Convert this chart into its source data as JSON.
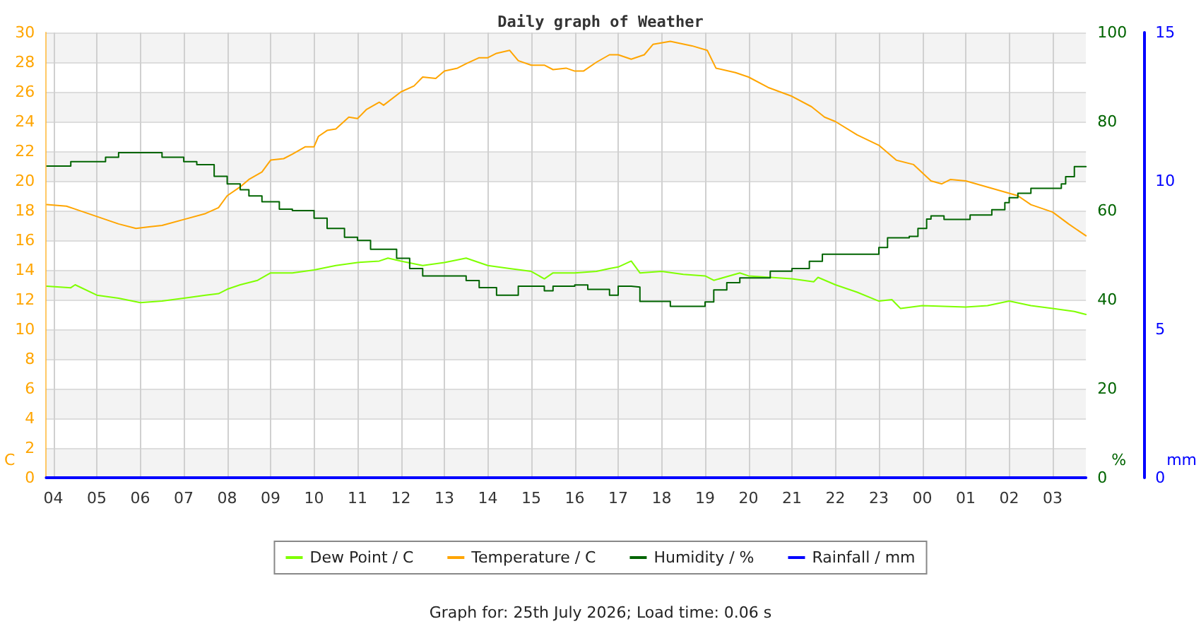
{
  "chart_data": {
    "type": "line",
    "title": "Daily graph of Weather",
    "ylabel": "C",
    "y2label": "%",
    "y3label": "mm",
    "annotations": [
      "Graph for: 25th July 2026; Load time: 0.06 s"
    ],
    "xlim": [
      "2026-07-24T03:50",
      "2026-07-25T03:46"
    ],
    "xticks": [
      {
        "value": "2026-07-24T04:00",
        "label": "04"
      },
      {
        "value": "2026-07-24T05:00",
        "label": "05"
      },
      {
        "value": "2026-07-24T06:00",
        "label": "06"
      },
      {
        "value": "2026-07-24T07:00",
        "label": "07"
      },
      {
        "value": "2026-07-24T08:00",
        "label": "08"
      },
      {
        "value": "2026-07-24T09:00",
        "label": "09"
      },
      {
        "value": "2026-07-24T10:00",
        "label": "10"
      },
      {
        "value": "2026-07-24T11:00",
        "label": "11"
      },
      {
        "value": "2026-07-24T12:00",
        "label": "12"
      },
      {
        "value": "2026-07-24T13:00",
        "label": "13"
      },
      {
        "value": "2026-07-24T14:00",
        "label": "14"
      },
      {
        "value": "2026-07-24T15:00",
        "label": "15"
      },
      {
        "value": "2026-07-24T16:00",
        "label": "16"
      },
      {
        "value": "2026-07-24T17:00",
        "label": "17"
      },
      {
        "value": "2026-07-24T18:00",
        "label": "18"
      },
      {
        "value": "2026-07-24T19:00",
        "label": "19"
      },
      {
        "value": "2026-07-24T20:00",
        "label": "20"
      },
      {
        "value": "2026-07-24T21:00",
        "label": "21"
      },
      {
        "value": "2026-07-24T22:00",
        "label": "22"
      },
      {
        "value": "2026-07-24T23:00",
        "label": "23"
      },
      {
        "value": "2026-07-25T00:00",
        "label": "00"
      },
      {
        "value": "2026-07-25T01:00",
        "label": "01"
      },
      {
        "value": "2026-07-25T02:00",
        "label": "02"
      },
      {
        "value": "2026-07-25T03:00",
        "label": "03"
      }
    ],
    "ylim": [
      0,
      30
    ],
    "yticks": [
      0,
      2,
      4,
      6,
      8,
      10,
      12,
      14,
      16,
      18,
      20,
      22,
      24,
      26,
      28,
      30
    ],
    "y2lim": [
      0,
      100
    ],
    "y2ticks": [
      0,
      20,
      40,
      60,
      80,
      100
    ],
    "y3lim": [
      0,
      15
    ],
    "y3ticks": [
      0,
      5,
      10,
      15
    ],
    "grid": true,
    "legend": "bottom",
    "marker": "none",
    "line_style": "solid",
    "series": [
      {
        "name": "Dew Point / C",
        "color": "#7fff00",
        "x": [
          "2026-07-24T03:51",
          "2026-07-24T04:24",
          "2026-07-24T04:30",
          "2026-07-24T05:00",
          "2026-07-24T05:30",
          "2026-07-24T06:00",
          "2026-07-24T06:30",
          "2026-07-24T07:00",
          "2026-07-24T07:30",
          "2026-07-24T07:48",
          "2026-07-24T08:00",
          "2026-07-24T08:18",
          "2026-07-24T08:42",
          "2026-07-24T09:00",
          "2026-07-24T09:30",
          "2026-07-24T10:00",
          "2026-07-24T10:30",
          "2026-07-24T11:00",
          "2026-07-24T11:30",
          "2026-07-24T11:42",
          "2026-07-24T12:00",
          "2026-07-24T12:30",
          "2026-07-24T13:00",
          "2026-07-24T13:30",
          "2026-07-24T14:00",
          "2026-07-24T14:30",
          "2026-07-24T15:00",
          "2026-07-24T15:18",
          "2026-07-24T15:30",
          "2026-07-24T16:00",
          "2026-07-24T16:30",
          "2026-07-24T16:48",
          "2026-07-24T17:00",
          "2026-07-24T17:18",
          "2026-07-24T17:30",
          "2026-07-24T18:00",
          "2026-07-24T18:30",
          "2026-07-24T19:00",
          "2026-07-24T19:12",
          "2026-07-24T19:48",
          "2026-07-24T20:00",
          "2026-07-24T20:30",
          "2026-07-24T21:00",
          "2026-07-24T21:30",
          "2026-07-24T21:36",
          "2026-07-24T22:00",
          "2026-07-24T22:30",
          "2026-07-24T23:00",
          "2026-07-24T23:18",
          "2026-07-24T23:30",
          "2026-07-25T00:00",
          "2026-07-25T01:00",
          "2026-07-25T01:30",
          "2026-07-25T02:00",
          "2026-07-25T02:30",
          "2026-07-25T03:00",
          "2026-07-25T03:30",
          "2026-07-25T03:46"
        ],
        "values": [
          12.9,
          12.8,
          13.0,
          12.3,
          12.1,
          11.8,
          11.9,
          12.1,
          12.3,
          12.4,
          12.7,
          13.0,
          13.3,
          13.8,
          13.8,
          14.0,
          14.3,
          14.5,
          14.6,
          14.8,
          14.6,
          14.3,
          14.5,
          14.8,
          14.3,
          14.1,
          13.9,
          13.4,
          13.8,
          13.8,
          13.9,
          14.1,
          14.2,
          14.6,
          13.8,
          13.9,
          13.7,
          13.6,
          13.3,
          13.8,
          13.6,
          13.5,
          13.4,
          13.2,
          13.5,
          13.0,
          12.5,
          11.9,
          12.0,
          11.4,
          11.6,
          11.5,
          11.6,
          11.9,
          11.6,
          11.4,
          11.2,
          11.0
        ]
      },
      {
        "name": "Temperature / C",
        "color": "#ffa500",
        "x": [
          "2026-07-24T03:51",
          "2026-07-24T04:18",
          "2026-07-24T04:30",
          "2026-07-24T05:00",
          "2026-07-24T05:30",
          "2026-07-24T05:54",
          "2026-07-24T06:12",
          "2026-07-24T06:30",
          "2026-07-24T07:00",
          "2026-07-24T07:30",
          "2026-07-24T07:48",
          "2026-07-24T08:00",
          "2026-07-24T08:18",
          "2026-07-24T08:30",
          "2026-07-24T08:48",
          "2026-07-24T09:00",
          "2026-07-24T09:18",
          "2026-07-24T09:30",
          "2026-07-24T09:48",
          "2026-07-24T10:00",
          "2026-07-24T10:06",
          "2026-07-24T10:18",
          "2026-07-24T10:30",
          "2026-07-24T10:48",
          "2026-07-24T11:00",
          "2026-07-24T11:12",
          "2026-07-24T11:30",
          "2026-07-24T11:36",
          "2026-07-24T12:00",
          "2026-07-24T12:18",
          "2026-07-24T12:30",
          "2026-07-24T12:48",
          "2026-07-24T13:00",
          "2026-07-24T13:18",
          "2026-07-24T13:30",
          "2026-07-24T13:48",
          "2026-07-24T14:00",
          "2026-07-24T14:12",
          "2026-07-24T14:30",
          "2026-07-24T14:42",
          "2026-07-24T15:00",
          "2026-07-24T15:18",
          "2026-07-24T15:30",
          "2026-07-24T15:48",
          "2026-07-24T16:00",
          "2026-07-24T16:12",
          "2026-07-24T16:30",
          "2026-07-24T16:48",
          "2026-07-24T17:00",
          "2026-07-24T17:18",
          "2026-07-24T17:36",
          "2026-07-24T17:48",
          "2026-07-24T18:12",
          "2026-07-24T18:42",
          "2026-07-24T19:03",
          "2026-07-24T19:15",
          "2026-07-24T19:42",
          "2026-07-24T20:00",
          "2026-07-24T20:27",
          "2026-07-24T21:00",
          "2026-07-24T21:27",
          "2026-07-24T21:45",
          "2026-07-24T22:00",
          "2026-07-24T22:30",
          "2026-07-24T23:00",
          "2026-07-24T23:24",
          "2026-07-24T23:48",
          "2026-07-25T00:12",
          "2026-07-25T00:27",
          "2026-07-25T00:39",
          "2026-07-25T01:00",
          "2026-07-25T01:36",
          "2026-07-25T02:12",
          "2026-07-25T02:30",
          "2026-07-25T03:00",
          "2026-07-25T03:22",
          "2026-07-25T03:46"
        ],
        "values": [
          18.4,
          18.3,
          18.1,
          17.6,
          17.1,
          16.8,
          16.9,
          17.0,
          17.4,
          17.8,
          18.2,
          19.0,
          19.6,
          20.1,
          20.6,
          21.4,
          21.5,
          21.8,
          22.3,
          22.3,
          23.0,
          23.4,
          23.5,
          24.3,
          24.2,
          24.8,
          25.3,
          25.1,
          26.0,
          26.4,
          27.0,
          26.9,
          27.4,
          27.6,
          27.9,
          28.3,
          28.3,
          28.6,
          28.8,
          28.1,
          27.8,
          27.8,
          27.5,
          27.6,
          27.4,
          27.4,
          28.0,
          28.5,
          28.5,
          28.2,
          28.5,
          29.2,
          29.4,
          29.1,
          28.8,
          27.6,
          27.3,
          27.0,
          26.3,
          25.7,
          25.0,
          24.3,
          24.0,
          23.1,
          22.4,
          21.4,
          21.1,
          20.0,
          19.8,
          20.1,
          20.0,
          19.5,
          19.0,
          18.4,
          17.9,
          17.1,
          16.3
        ]
      },
      {
        "name": "Humidity / %",
        "type": "step",
        "axis": "y2",
        "color": "#006400",
        "x": [
          "2026-07-24T03:51",
          "2026-07-24T04:24",
          "2026-07-24T05:12",
          "2026-07-24T05:30",
          "2026-07-24T06:30",
          "2026-07-24T07:00",
          "2026-07-24T07:18",
          "2026-07-24T07:42",
          "2026-07-24T08:00",
          "2026-07-24T08:18",
          "2026-07-24T08:30",
          "2026-07-24T08:48",
          "2026-07-24T09:12",
          "2026-07-24T09:30",
          "2026-07-24T10:00",
          "2026-07-24T10:18",
          "2026-07-24T10:42",
          "2026-07-24T11:00",
          "2026-07-24T11:18",
          "2026-07-24T11:54",
          "2026-07-24T12:12",
          "2026-07-24T12:30",
          "2026-07-24T13:00",
          "2026-07-24T13:30",
          "2026-07-24T13:48",
          "2026-07-24T14:12",
          "2026-07-24T14:30",
          "2026-07-24T14:42",
          "2026-07-24T15:18",
          "2026-07-24T15:30",
          "2026-07-24T16:00",
          "2026-07-24T16:18",
          "2026-07-24T16:48",
          "2026-07-24T17:00",
          "2026-07-24T17:18",
          "2026-07-24T17:30",
          "2026-07-24T18:00",
          "2026-07-24T18:12",
          "2026-07-24T19:00",
          "2026-07-24T19:12",
          "2026-07-24T19:30",
          "2026-07-24T19:48",
          "2026-07-24T20:30",
          "2026-07-24T21:00",
          "2026-07-24T21:24",
          "2026-07-24T21:42",
          "2026-07-24T22:00",
          "2026-07-24T22:48",
          "2026-07-24T23:00",
          "2026-07-24T23:12",
          "2026-07-24T23:42",
          "2026-07-24T23:54",
          "2026-07-25T00:06",
          "2026-07-25T00:12",
          "2026-07-25T00:30",
          "2026-07-25T01:00",
          "2026-07-25T01:06",
          "2026-07-25T01:24",
          "2026-07-25T01:36",
          "2026-07-25T01:54",
          "2026-07-25T02:00",
          "2026-07-25T02:12",
          "2026-07-25T02:30",
          "2026-07-25T03:00",
          "2026-07-25T03:12",
          "2026-07-25T03:18",
          "2026-07-25T03:30",
          "2026-07-25T03:46"
        ],
        "values": [
          70,
          71,
          72,
          73,
          72,
          71,
          70.3,
          67.7,
          66,
          64.7,
          63.3,
          62,
          60.3,
          60,
          58.3,
          56,
          54,
          53.3,
          51.3,
          49.3,
          47,
          45.3,
          45.3,
          44.3,
          42.7,
          41,
          41,
          43,
          42,
          43,
          43.3,
          42.3,
          41,
          43,
          42.8,
          39.6,
          39.6,
          38.5,
          39.5,
          42.2,
          43.8,
          44.9,
          46.4,
          47,
          48.6,
          50.2,
          50.2,
          50.2,
          51.7,
          53.9,
          54.2,
          56,
          58.1,
          58.8,
          58,
          58,
          59,
          59,
          60.2,
          61.8,
          62.9,
          63.9,
          65,
          65,
          66,
          67.6,
          69.9,
          69.9
        ]
      },
      {
        "name": "Rainfall / mm",
        "axis": "y3",
        "color": "#0000ff",
        "x": [
          "2026-07-24T03:50",
          "2026-07-25T03:46"
        ],
        "values": [
          0,
          0
        ]
      }
    ]
  }
}
